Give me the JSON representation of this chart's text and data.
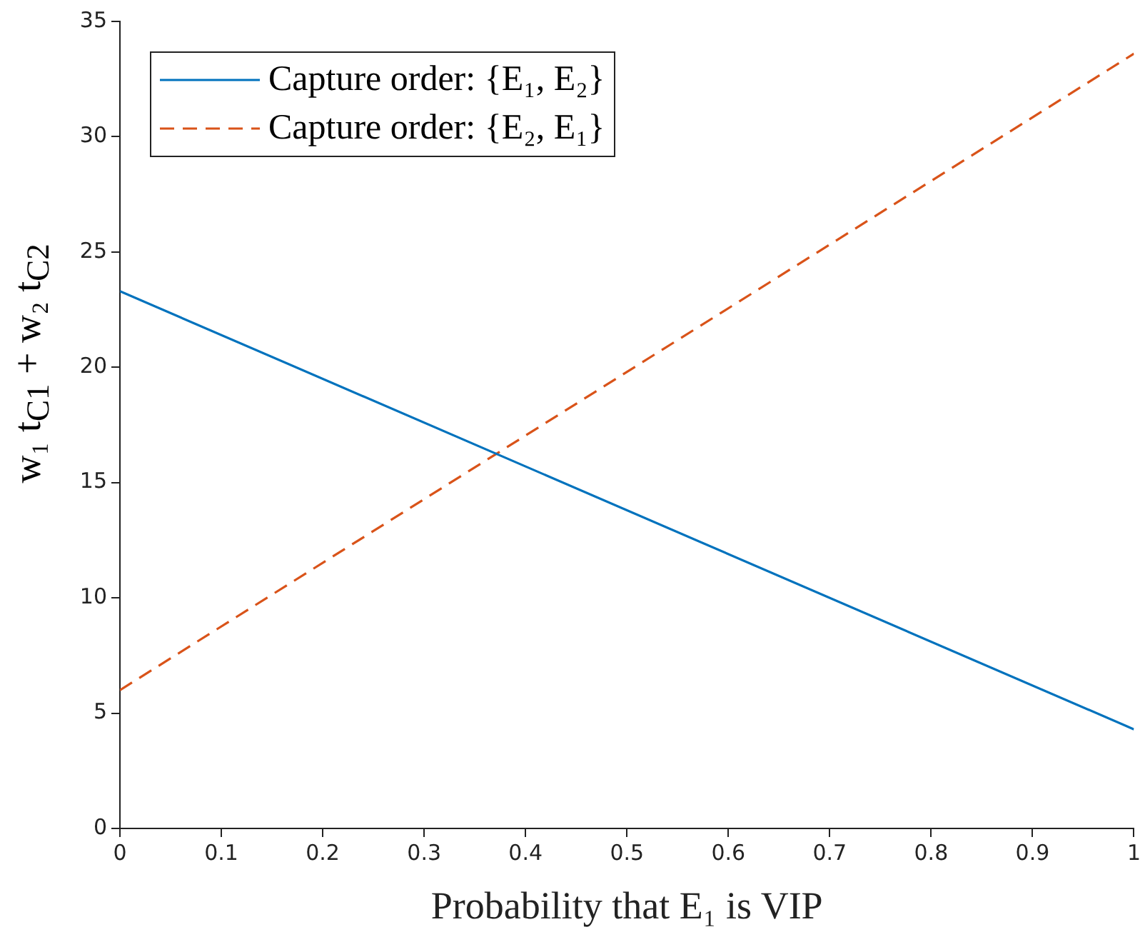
{
  "chart_data": {
    "type": "line",
    "xlabel": "Probability that E₁ is VIP",
    "ylabel": "w₁ t$_{C1}$ + w₂ t$_{C2}$",
    "x": [
      0,
      1
    ],
    "series": [
      {
        "name": "Capture order: {E₁, E₂}",
        "color": "#0072bd",
        "values": [
          23.3,
          4.3
        ],
        "line_style": "solid"
      },
      {
        "name": "Capture order: {E₂, E₁}",
        "color": "#d95319",
        "values": [
          6.0,
          33.6
        ],
        "line_style": "dashed"
      }
    ],
    "xlim": [
      0,
      1
    ],
    "xticks": [
      0,
      0.1,
      0.2,
      0.3,
      0.4,
      0.5,
      0.6,
      0.7,
      0.8,
      0.9,
      1
    ],
    "ylim": [
      0,
      35
    ],
    "yticks": [
      0,
      5,
      10,
      15,
      20,
      25,
      30,
      35
    ],
    "grid": false,
    "legend": "top left",
    "marker": "none"
  }
}
